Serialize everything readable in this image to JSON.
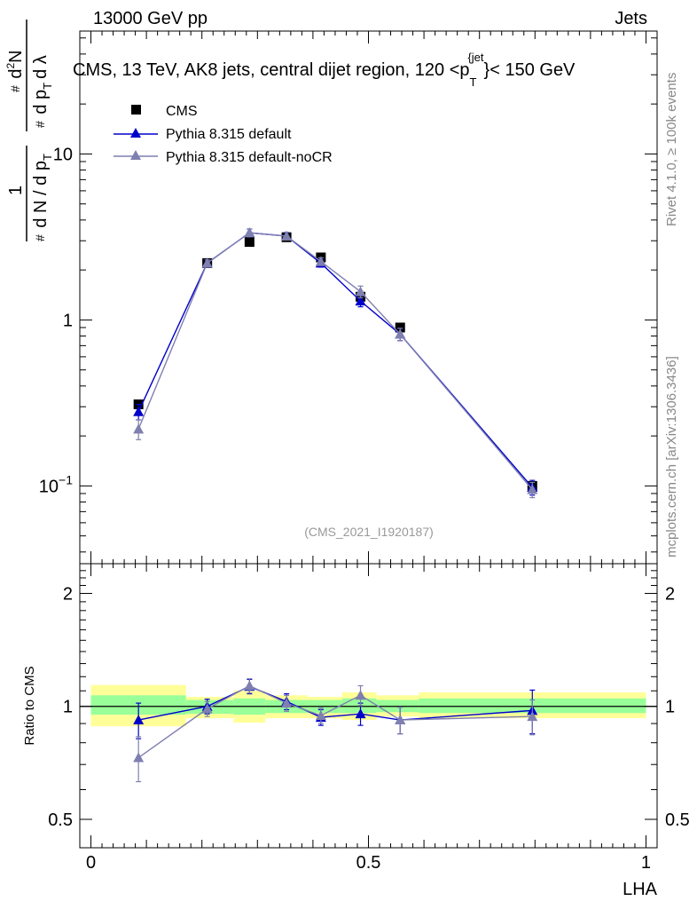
{
  "header": {
    "left": "13000 GeV pp",
    "right": "Jets"
  },
  "side_labels": {
    "rivet": "Rivet 4.1.0, ≥ 100k events",
    "mcplots": "mcplots.cern.ch [arXiv:1306.3436]"
  },
  "chart_data": [
    {
      "panel": "main",
      "type": "scatter",
      "title": "CMS, 13 TeV, AK8 jets, central dijet region, 120 <p_T^{jet}< 150 GeV",
      "title_parts": {
        "prefix": "CMS, 13 TeV, AK8 jets, central dijet region, 120 <p",
        "sub": "T",
        "sup": "{jet",
        "close": "}",
        "suffix": "< 150 GeV"
      },
      "ylabel": "1/(dN/dp_T) d²N/(dp_T dλ)",
      "ylabel_parts": {
        "one": "1",
        "dn": "d N / d p",
        "d2n": "d",
        "d2n_sup": "2",
        "d2n_n": "N",
        "dpt": "d p",
        "dlam": "d λ",
        "T": "T",
        "hash": "#"
      },
      "yscale": "log",
      "ylim": [
        0.034,
        55
      ],
      "xlim": [
        -0.02,
        1.02
      ],
      "watermark": "(CMS_2021_I1920187)",
      "y_ticks": [
        {
          "value": 0.1,
          "base": "10",
          "exp": "−1"
        },
        {
          "value": 1,
          "label": "1"
        },
        {
          "value": 10,
          "label": "10"
        }
      ],
      "legend_position": "top-left",
      "series": [
        {
          "name": "CMS",
          "color": "#000000",
          "marker": "square",
          "x": [
            0.0857,
            0.2095,
            0.2857,
            0.3524,
            0.4143,
            0.4857,
            0.5571,
            0.7952
          ],
          "y": [
            0.31,
            2.2,
            2.95,
            3.15,
            2.38,
            1.38,
            0.9,
            0.1
          ],
          "err": [
            0.0,
            0.0,
            0.0,
            0.0,
            0.0,
            0.0,
            0.0,
            0.0
          ]
        },
        {
          "name": "Pythia 8.315 default",
          "color": "#0000cc",
          "marker": "triangle",
          "x": [
            0.0857,
            0.2095,
            0.2857,
            0.3524,
            0.4143,
            0.4857,
            0.5571,
            0.7952
          ],
          "y": [
            0.28,
            2.2,
            3.35,
            3.2,
            2.2,
            1.3,
            0.82,
            0.098
          ],
          "err": [
            0.03,
            0.1,
            0.18,
            0.17,
            0.12,
            0.1,
            0.07,
            0.01
          ]
        },
        {
          "name": "Pythia 8.315 default-noCR",
          "color": "#7f7fb0",
          "marker": "triangle",
          "x": [
            0.0857,
            0.2095,
            0.2857,
            0.3524,
            0.4143,
            0.4857,
            0.5571,
            0.7952
          ],
          "y": [
            0.22,
            2.2,
            3.35,
            3.2,
            2.25,
            1.48,
            0.82,
            0.095
          ],
          "err": [
            0.03,
            0.1,
            0.18,
            0.17,
            0.12,
            0.12,
            0.07,
            0.01
          ]
        }
      ]
    },
    {
      "panel": "ratio",
      "type": "scatter",
      "ylabel": "Ratio to CMS",
      "xlabel": "LHA",
      "yscale": "log",
      "ylim": [
        0.42,
        2.4
      ],
      "xlim": [
        -0.02,
        1.02
      ],
      "y_ticks": [
        0.5,
        1,
        2
      ],
      "x_ticks": [
        0,
        0.5,
        1
      ],
      "x_tick_labels": [
        "0",
        "0.5",
        "1"
      ],
      "y_tick_labels": [
        "0.5",
        "1",
        "2"
      ],
      "bands": {
        "edges": [
          0,
          0.1714,
          0.2571,
          0.3143,
          0.3905,
          0.4524,
          0.5143,
          0.5905,
          1.0
        ],
        "outer": [
          [
            0.885,
            1.14
          ],
          [
            0.93,
            1.06
          ],
          [
            0.905,
            1.1
          ],
          [
            0.93,
            1.07
          ],
          [
            0.93,
            1.06
          ],
          [
            0.92,
            1.09
          ],
          [
            0.94,
            1.07
          ],
          [
            0.93,
            1.09
          ]
        ],
        "inner": [
          [
            0.95,
            1.07
          ],
          [
            0.955,
            1.04
          ],
          [
            0.95,
            1.05
          ],
          [
            0.96,
            1.04
          ],
          [
            0.96,
            1.04
          ],
          [
            0.96,
            1.05
          ],
          [
            0.965,
            1.04
          ],
          [
            0.96,
            1.05
          ]
        ],
        "outer_color": "#ffff99",
        "inner_color": "#99ff99"
      },
      "series": [
        {
          "name": "Pythia 8.315 default",
          "color": "#0000cc",
          "x": [
            0.0857,
            0.2095,
            0.2857,
            0.3524,
            0.4143,
            0.4857,
            0.5571,
            0.7952
          ],
          "y": [
            0.92,
            1.0,
            1.13,
            1.03,
            0.935,
            0.955,
            0.92,
            0.975
          ],
          "err": [
            0.1,
            0.045,
            0.05,
            0.05,
            0.045,
            0.065,
            0.075,
            0.13
          ]
        },
        {
          "name": "Pythia 8.315 default-noCR",
          "color": "#7f7fb0",
          "x": [
            0.0857,
            0.2095,
            0.2857,
            0.3524,
            0.4143,
            0.4857,
            0.5571,
            0.7952
          ],
          "y": [
            0.73,
            0.985,
            1.135,
            1.02,
            0.945,
            1.07,
            0.92,
            0.94
          ],
          "err": [
            0.1,
            0.045,
            0.05,
            0.05,
            0.045,
            0.065,
            0.075,
            0.1
          ]
        }
      ]
    }
  ]
}
